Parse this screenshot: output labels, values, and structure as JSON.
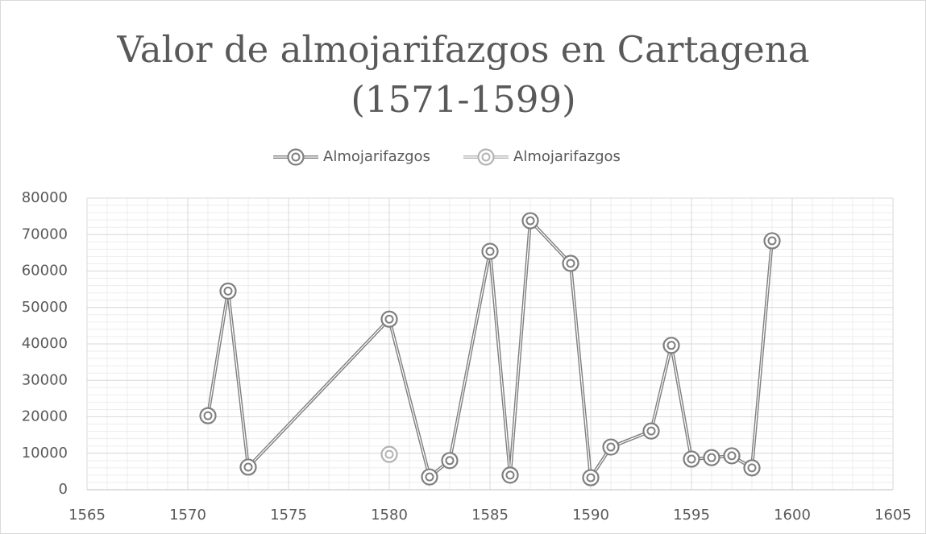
{
  "chart_data": {
    "type": "line",
    "title": "Valor de almojarifazgos en Cartagena (1571-1599)",
    "series": [
      {
        "name": "Almojarifazgos",
        "color": "#7f7f7f",
        "x": [
          1571,
          1572,
          1573,
          1580,
          1582,
          1583,
          1585,
          1586,
          1587,
          1589,
          1590,
          1591,
          1593,
          1594,
          1595,
          1596,
          1597,
          1598,
          1599
        ],
        "values": [
          20300,
          54500,
          6200,
          46800,
          3500,
          8000,
          65400,
          4000,
          73800,
          62100,
          3300,
          11700,
          16100,
          39600,
          8400,
          8800,
          9300,
          6000,
          68300
        ]
      },
      {
        "name": "Almojarifazgos",
        "color": "#b3b3b3",
        "x": [
          1580
        ],
        "values": [
          9700
        ]
      }
    ],
    "xlim": [
      1565,
      1605
    ],
    "xticks": [
      1565,
      1570,
      1575,
      1580,
      1585,
      1590,
      1595,
      1600,
      1605
    ],
    "ylim": [
      0,
      80000
    ],
    "yticks": [
      0,
      10000,
      20000,
      30000,
      40000,
      50000,
      60000,
      70000,
      80000
    ],
    "grid": true,
    "x_minor_step": 1,
    "y_minor_step": 2000,
    "legend": "top"
  }
}
